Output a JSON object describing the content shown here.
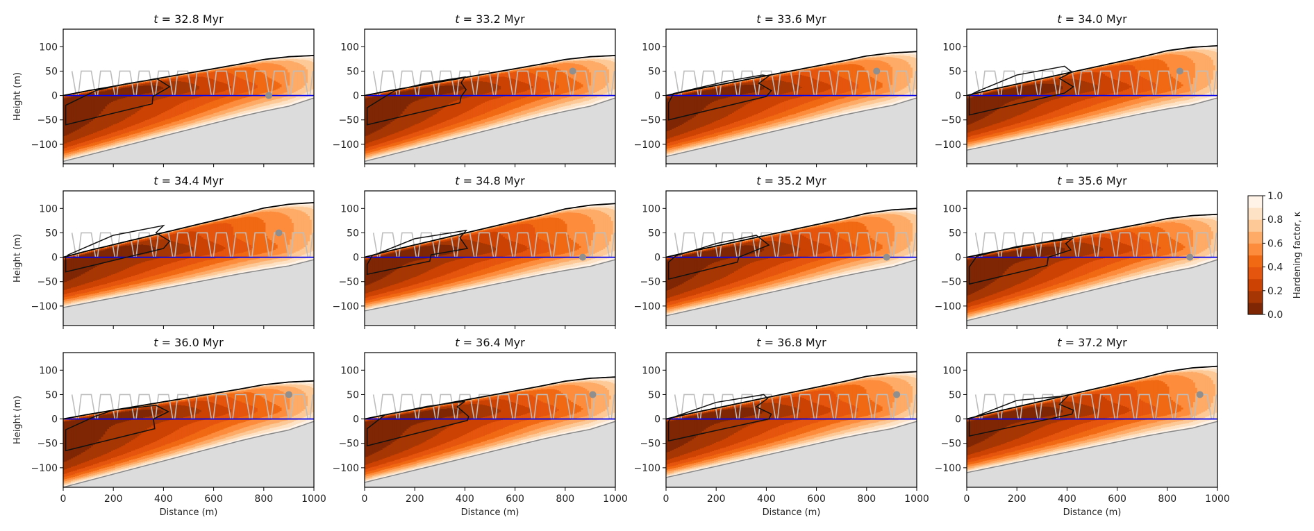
{
  "chart_data": {
    "type": "heatmap",
    "subtype": "filled-contour small multiples",
    "xlabel": "Distance (m)",
    "ylabel": "Height (m)",
    "xlim": [
      0,
      1000
    ],
    "ylim": [
      -140,
      136
    ],
    "xticks": [
      0,
      200,
      400,
      600,
      800,
      1000
    ],
    "xtick_labels": [
      "0",
      "200",
      "400",
      "600",
      "800",
      "1000"
    ],
    "yticks": [
      -100,
      -50,
      0,
      50,
      100
    ],
    "ytick_labels": [
      "−100",
      "−50",
      "0",
      "50",
      "100"
    ],
    "grid": false,
    "colorbar": {
      "label": "Hardening factor, κ",
      "range": [
        0,
        1
      ],
      "levels": 10,
      "ticks": [
        0,
        0.2,
        0.4,
        0.6,
        0.8,
        1.0
      ],
      "tick_labels": [
        "0.0",
        "0.2",
        "0.4",
        "0.6",
        "0.8",
        "1.0"
      ],
      "colormap": [
        "#7f2704",
        "#a63603",
        "#cc4202",
        "#e6550d",
        "#f16913",
        "#fd8d3c",
        "#fdab67",
        "#fdc997",
        "#fee2c5",
        "#fff2e6"
      ]
    },
    "colors": {
      "sea_level_line": "#0000ee",
      "surface_line": "#000000",
      "bed_line": "#888888",
      "bedrock_fill": "#dcdcdc",
      "oscillation_line": "#bdbdbd",
      "marker": "#8f8f8f",
      "outline": "#111111"
    },
    "oscillation": {
      "low": 0,
      "high": 50,
      "period_m": 77
    },
    "panels": [
      {
        "title": "t = 32.8 Myr",
        "surface_at_1000": 82,
        "bed_at_0": -135,
        "marker": [
          820,
          0
        ],
        "outline": [
          [
            10,
            -20
          ],
          [
            10,
            -60
          ],
          [
            355,
            -17
          ],
          [
            358,
            -2
          ],
          [
            425,
            18
          ],
          [
            375,
            34
          ],
          [
            250,
            24
          ],
          [
            130,
            10
          ]
        ]
      },
      {
        "title": "t = 33.2 Myr",
        "surface_at_1000": 82,
        "bed_at_0": -135,
        "marker": [
          830,
          50
        ],
        "outline": [
          [
            10,
            -25
          ],
          [
            10,
            -60
          ],
          [
            380,
            -15
          ],
          [
            385,
            -2
          ],
          [
            405,
            12
          ],
          [
            385,
            26
          ],
          [
            400,
            38
          ],
          [
            250,
            26
          ],
          [
            120,
            10
          ]
        ]
      },
      {
        "title": "t = 33.6 Myr",
        "surface_at_1000": 90,
        "bed_at_0": -125,
        "marker": [
          840,
          50
        ],
        "outline": [
          [
            10,
            -15
          ],
          [
            10,
            -50
          ],
          [
            400,
            -2
          ],
          [
            420,
            10
          ],
          [
            370,
            25
          ],
          [
            410,
            40
          ],
          [
            385,
            42
          ],
          [
            250,
            30
          ],
          [
            30,
            4
          ]
        ]
      },
      {
        "title": "t = 34.0 Myr",
        "surface_at_1000": 102,
        "bed_at_0": -112,
        "marker": [
          850,
          50
        ],
        "outline": [
          [
            10,
            0
          ],
          [
            10,
            -40
          ],
          [
            390,
            5
          ],
          [
            425,
            18
          ],
          [
            370,
            35
          ],
          [
            420,
            48
          ],
          [
            390,
            60
          ],
          [
            200,
            42
          ],
          [
            40,
            8
          ]
        ]
      },
      {
        "title": "t = 34.4 Myr",
        "surface_at_1000": 112,
        "bed_at_0": -103,
        "marker": [
          860,
          50
        ],
        "outline": [
          [
            10,
            0
          ],
          [
            10,
            -30
          ],
          [
            400,
            18
          ],
          [
            425,
            33
          ],
          [
            370,
            50
          ],
          [
            400,
            65
          ],
          [
            200,
            45
          ],
          [
            20,
            5
          ]
        ]
      },
      {
        "title": "t = 34.8 Myr",
        "surface_at_1000": 110,
        "bed_at_0": -110,
        "marker": [
          870,
          0
        ],
        "outline": [
          [
            10,
            -15
          ],
          [
            10,
            -35
          ],
          [
            260,
            -8
          ],
          [
            265,
            5
          ],
          [
            410,
            18
          ],
          [
            380,
            40
          ],
          [
            405,
            55
          ],
          [
            200,
            38
          ],
          [
            30,
            3
          ]
        ]
      },
      {
        "title": "t = 35.2 Myr",
        "surface_at_1000": 100,
        "bed_at_0": -120,
        "marker": [
          880,
          0
        ],
        "outline": [
          [
            10,
            -10
          ],
          [
            10,
            -45
          ],
          [
            285,
            -10
          ],
          [
            290,
            0
          ],
          [
            410,
            25
          ],
          [
            360,
            45
          ],
          [
            200,
            28
          ],
          [
            40,
            3
          ]
        ]
      },
      {
        "title": "t = 35.6 Myr",
        "surface_at_1000": 88,
        "bed_at_0": -130,
        "marker": [
          890,
          0
        ],
        "outline": [
          [
            10,
            -20
          ],
          [
            10,
            -55
          ],
          [
            320,
            -17
          ],
          [
            325,
            0
          ],
          [
            415,
            15
          ],
          [
            395,
            28
          ],
          [
            420,
            38
          ],
          [
            200,
            22
          ],
          [
            40,
            2
          ]
        ]
      },
      {
        "title": "t = 36.0 Myr",
        "surface_at_1000": 78,
        "bed_at_0": -140,
        "marker": [
          900,
          50
        ],
        "outline": [
          [
            10,
            -22
          ],
          [
            10,
            -65
          ],
          [
            365,
            -20
          ],
          [
            360,
            0
          ],
          [
            420,
            15
          ],
          [
            370,
            28
          ],
          [
            200,
            18
          ],
          [
            130,
            6
          ]
        ]
      },
      {
        "title": "t = 36.4 Myr",
        "surface_at_1000": 86,
        "bed_at_0": -130,
        "marker": [
          910,
          50
        ],
        "outline": [
          [
            10,
            -20
          ],
          [
            10,
            -55
          ],
          [
            410,
            -3
          ],
          [
            415,
            5
          ],
          [
            370,
            25
          ],
          [
            400,
            36
          ],
          [
            250,
            26
          ],
          [
            80,
            8
          ]
        ]
      },
      {
        "title": "t = 36.8 Myr",
        "surface_at_1000": 97,
        "bed_at_0": -120,
        "marker": [
          920,
          50
        ],
        "outline": [
          [
            10,
            -5
          ],
          [
            10,
            -45
          ],
          [
            410,
            0
          ],
          [
            420,
            10
          ],
          [
            360,
            25
          ],
          [
            405,
            42
          ],
          [
            390,
            50
          ],
          [
            200,
            34
          ],
          [
            20,
            2
          ]
        ]
      },
      {
        "title": "t = 37.2 Myr",
        "surface_at_1000": 108,
        "bed_at_0": -110,
        "marker": [
          930,
          50
        ],
        "outline": [
          [
            10,
            0
          ],
          [
            10,
            -35
          ],
          [
            420,
            10
          ],
          [
            425,
            18
          ],
          [
            370,
            30
          ],
          [
            405,
            48
          ],
          [
            200,
            38
          ],
          [
            20,
            2
          ]
        ]
      }
    ]
  }
}
